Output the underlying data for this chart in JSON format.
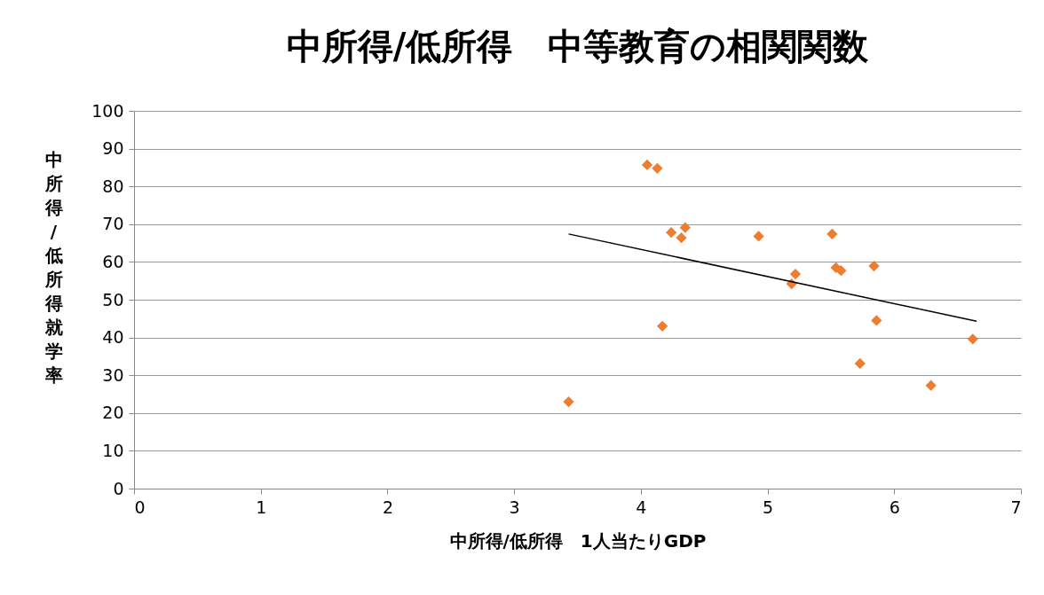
{
  "chart_data": {
    "type": "scatter",
    "title": "中所得/低所得　中等教育の相関関数",
    "xlabel": "中所得/低所得　1人当たりGDP",
    "ylabel": "中所得/低所得就学率",
    "marker": "diamond",
    "grid": "y",
    "xlim": [
      0,
      7
    ],
    "xticks": [
      0,
      1,
      2,
      3,
      4,
      5,
      6,
      7
    ],
    "ylim": [
      0,
      100
    ],
    "yticks": [
      0,
      10,
      20,
      30,
      40,
      50,
      60,
      70,
      80,
      90,
      100
    ],
    "series": [
      {
        "color": "#ed7d31",
        "x": [
          3.43,
          4.05,
          4.13,
          4.17,
          4.24,
          4.32,
          4.35,
          4.93,
          5.19,
          5.22,
          5.51,
          5.54,
          5.58,
          5.73,
          5.84,
          5.86,
          6.29,
          6.62
        ],
        "values": [
          23,
          85.7,
          84.8,
          43,
          67.8,
          66.4,
          69.1,
          66.8,
          54.2,
          56.8,
          67.4,
          58.5,
          57.7,
          33.1,
          58.9,
          44.5,
          27.3,
          39.6
        ]
      },
      {
        "type": "line",
        "color": "#000000",
        "marker": "none",
        "x": [
          3.43,
          6.65
        ],
        "values": [
          67.4,
          44.3
        ]
      }
    ]
  }
}
